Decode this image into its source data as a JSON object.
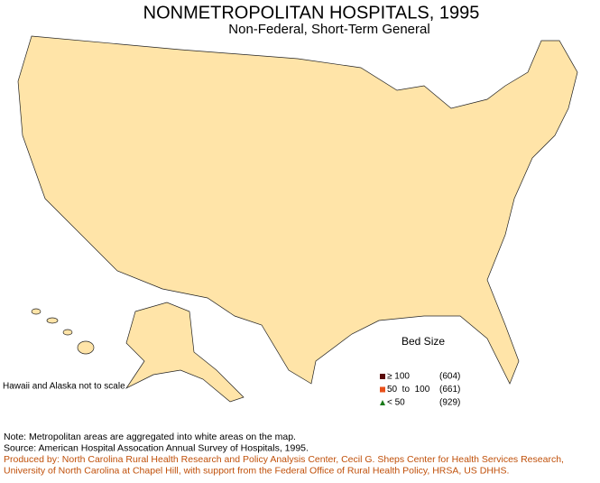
{
  "header": {
    "title": "NONMETROPOLITAN HOSPITALS, 1995",
    "subtitle": "Non-Federal, Short-Term General"
  },
  "legend": {
    "title": "Bed Size",
    "items": [
      {
        "label": "≥ 100",
        "count": "(604)",
        "color": "#5a0a0a",
        "shape": "square"
      },
      {
        "label": "50  to  100",
        "count": "(661)",
        "color": "#e8501a",
        "shape": "square"
      },
      {
        "label": "< 50",
        "count": "(929)",
        "color": "#1a7a1a",
        "shape": "triangle"
      }
    ]
  },
  "map_note": "Hawaii and Alaska not to scale",
  "notes": [
    "Note: Metropolitan areas are aggregated into white areas on the map.",
    "Source: American Hospital Assocation Annual Survey of Hospitals, 1995.",
    "Produced by: North Carolina Rural Health Research and Policy Analysis Center, Cecil G. Sheps Center for Health Services Research,",
    "University of North Carolina at Chapel Hill, with support from the Federal Office of Rural Health Policy, HRSA, US DHHS."
  ]
}
